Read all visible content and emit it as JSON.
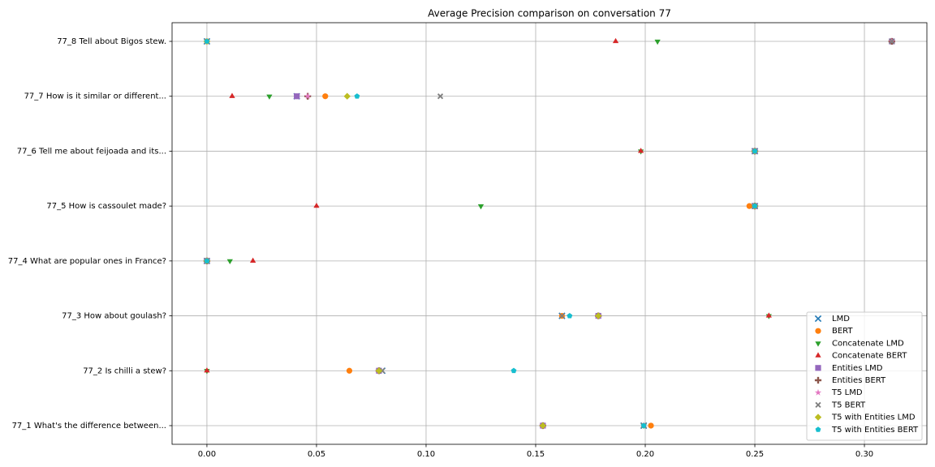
{
  "chart_data": {
    "type": "scatter",
    "title": "Average Precision comparison on conversation 77",
    "categories": [
      "77_1 What's the difference between...",
      "77_2 Is chilli a stew?",
      "77_3 How about goulash?",
      "77_4 What are popular ones in France?",
      "77_5 How is cassoulet made?",
      "77_6 Tell me about feijoada and its...",
      "77_7 How is it similar or different...",
      "77_8 Tell about Bigos stew."
    ],
    "series": [
      {
        "name": "LMD",
        "color": "#1f77b4",
        "marker": "x",
        "values": [
          0.1993,
          0.08,
          0.162,
          0,
          0.25,
          0.25,
          0.041,
          0
        ]
      },
      {
        "name": "BERT",
        "color": "#ff7f0e",
        "marker": "circle",
        "values": [
          0.2026,
          0.065,
          0.162,
          0,
          0.2475,
          0.25,
          0.054,
          0
        ]
      },
      {
        "name": "Concatenate LMD",
        "color": "#2ca02c",
        "marker": "triangle-down",
        "values": [
          0.1993,
          0,
          0.2564,
          0.0105,
          0.125,
          0.198,
          0.0285,
          0.2056
        ]
      },
      {
        "name": "Concatenate BERT",
        "color": "#d62728",
        "marker": "triangle-up",
        "values": [
          0.1993,
          0,
          0.2564,
          0.021,
          0.05,
          0.198,
          0.0115,
          0.1865
        ]
      },
      {
        "name": "Entities LMD",
        "color": "#9467bd",
        "marker": "square",
        "values": [
          0.1533,
          0.0785,
          0.1786,
          0,
          0.25,
          0.25,
          0.041,
          0.3125
        ]
      },
      {
        "name": "Entities BERT",
        "color": "#8c564b",
        "marker": "plus",
        "values": [
          0.1533,
          0.0785,
          0.1786,
          0,
          0.25,
          0.25,
          0.046,
          0.3125
        ]
      },
      {
        "name": "T5 LMD",
        "color": "#e377c2",
        "marker": "star",
        "values": [
          0.1533,
          0.0785,
          0.1786,
          0,
          0.25,
          0.25,
          0.046,
          0.3125
        ]
      },
      {
        "name": "T5 BERT",
        "color": "#7f7f7f",
        "marker": "X",
        "values": [
          0.1993,
          0.08,
          0.162,
          0,
          0.25,
          0.25,
          0.1065,
          0.3125
        ]
      },
      {
        "name": "T5 with Entities LMD",
        "color": "#bcbd22",
        "marker": "diamond",
        "values": [
          0.1533,
          0.0785,
          0.1786,
          0,
          0.25,
          0.25,
          0.064,
          0
        ]
      },
      {
        "name": "T5 with Entities BERT",
        "color": "#17becf",
        "marker": "pentagon",
        "values": [
          0.1993,
          0.14,
          0.1655,
          0,
          0.25,
          0.25,
          0.0685,
          0
        ]
      }
    ],
    "xlim": [
      -0.0159,
      0.3285
    ],
    "xticks": [
      {
        "value": 0,
        "label": "0.00"
      },
      {
        "value": 0.05,
        "label": "0.05"
      },
      {
        "value": 0.1,
        "label": "0.10"
      },
      {
        "value": 0.15,
        "label": "0.15"
      },
      {
        "value": 0.2,
        "label": "0.20"
      },
      {
        "value": 0.25,
        "label": "0.25"
      },
      {
        "value": 0.3,
        "label": "0.30"
      }
    ],
    "grid": true,
    "legend": "lower right"
  }
}
